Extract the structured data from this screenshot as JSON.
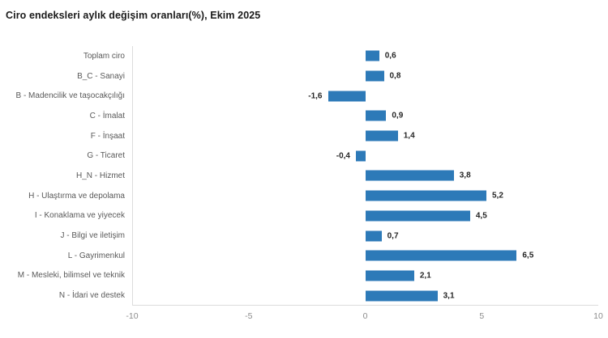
{
  "page": {
    "title": "Ciro endeksleri aylık değişim oranları(%), Ekim 2025"
  },
  "chart_data": {
    "type": "bar",
    "orientation": "horizontal",
    "title": "Ciro endeksleri aylık değişim oranları(%), Ekim 2025",
    "categories": [
      "Toplam ciro",
      "B_C - Sanayi",
      "B - Madencilik ve taşocakçılığı",
      "C - İmalat",
      "F - İnşaat",
      "G - Ticaret",
      "H_N - Hizmet",
      "H - Ulaştırma ve depolama",
      "I - Konaklama ve yiyecek",
      "J - Bilgi ve iletişim",
      "L - Gayrimenkul",
      "M - Mesleki, bilimsel ve teknik",
      "N - İdari ve destek"
    ],
    "values": [
      0.6,
      0.8,
      -1.6,
      0.9,
      1.4,
      -0.4,
      3.8,
      5.2,
      4.5,
      0.7,
      6.5,
      2.1,
      3.1
    ],
    "display_values": [
      "0,6",
      "0,8",
      "-1,6",
      "0,9",
      "1,4",
      "-0,4",
      "3,8",
      "5,2",
      "4,5",
      "0,7",
      "6,5",
      "2,1",
      "3,1"
    ],
    "xlabel": "",
    "ylabel": "",
    "xlim": [
      -10,
      10
    ],
    "x_ticks": [
      -10,
      -5,
      0,
      5,
      10
    ],
    "x_tick_labels": [
      "-10",
      "-5",
      "0",
      "5",
      "10"
    ],
    "grid": false,
    "legend": false
  },
  "colors": {
    "bar": "#2d7ab8",
    "axis_line": "#dcdcdc",
    "category_label": "#595959",
    "value_label": "#262626",
    "tick_label": "#8c8c8c",
    "title": "#1a1a1a",
    "background": "#ffffff"
  }
}
